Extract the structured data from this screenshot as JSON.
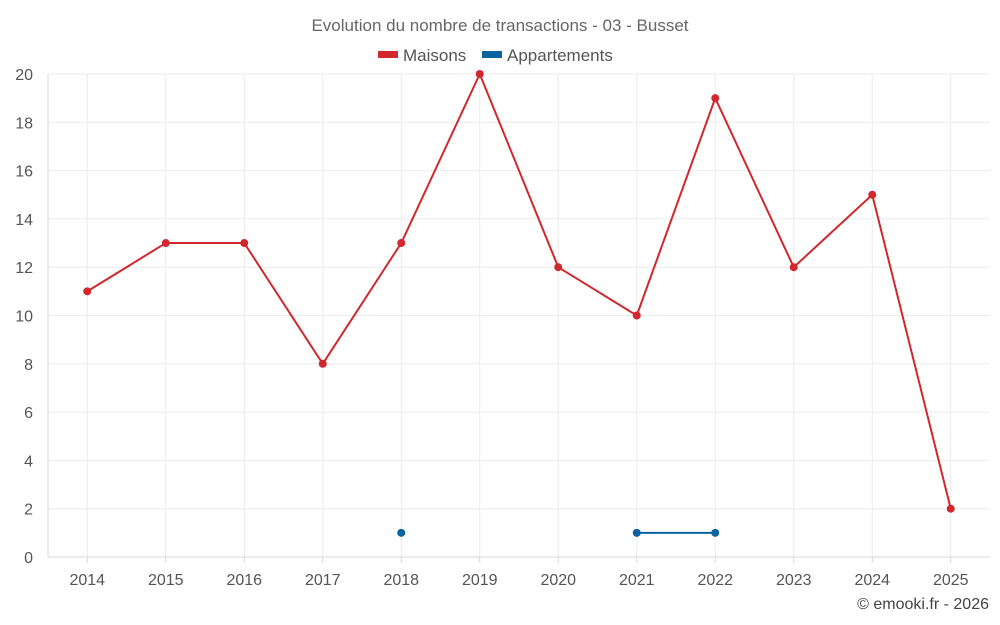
{
  "chart_data": {
    "type": "line",
    "title": "Evolution du nombre de transactions - 03 - Busset",
    "categories": [
      "2014",
      "2015",
      "2016",
      "2017",
      "2018",
      "2019",
      "2020",
      "2021",
      "2022",
      "2023",
      "2024",
      "2025"
    ],
    "series": [
      {
        "name": "Maisons",
        "color": "#d0282d",
        "values": [
          11,
          13,
          13,
          8,
          13,
          20,
          12,
          10,
          19,
          12,
          15,
          2
        ]
      },
      {
        "name": "Appartements",
        "color": "#0b64a0",
        "values": [
          null,
          null,
          null,
          null,
          1,
          null,
          null,
          1,
          1,
          null,
          null,
          null
        ]
      }
    ],
    "ylim": [
      0,
      20
    ],
    "yticks": [
      0,
      2,
      4,
      6,
      8,
      10,
      12,
      14,
      16,
      18,
      20
    ],
    "xlabel": "",
    "ylabel": "",
    "legend_position": "top-center",
    "grid": true
  },
  "credit": "© emooki.fr - 2026"
}
